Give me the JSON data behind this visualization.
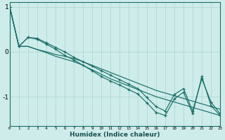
{
  "xlabel": "Humidex (Indice chaleur)",
  "bg_color": "#ceecea",
  "grid_color": "#b0d8d4",
  "line_color": "#1a7068",
  "xlim": [
    0,
    23
  ],
  "ylim": [
    -1.65,
    1.1
  ],
  "yticks": [
    -1,
    0,
    1
  ],
  "xticks": [
    0,
    1,
    2,
    3,
    4,
    5,
    6,
    7,
    8,
    9,
    10,
    11,
    12,
    13,
    14,
    15,
    16,
    17,
    18,
    19,
    20,
    21,
    22,
    23
  ],
  "series_smooth": [
    [
      1.0,
      0.12,
      0.12,
      0.05,
      0.0,
      -0.06,
      -0.1,
      -0.15,
      -0.22,
      -0.3,
      -0.38,
      -0.46,
      -0.54,
      -0.62,
      -0.7,
      -0.78,
      -0.86,
      -0.92,
      -0.98,
      -1.04,
      -1.1,
      -1.16,
      -1.22,
      -1.28
    ],
    [
      1.0,
      0.12,
      0.12,
      0.05,
      -0.02,
      -0.1,
      -0.16,
      -0.22,
      -0.3,
      -0.4,
      -0.5,
      -0.6,
      -0.68,
      -0.76,
      -0.84,
      -0.92,
      -1.0,
      -1.06,
      -1.12,
      -1.18,
      -1.24,
      -1.3,
      -1.36,
      -1.42
    ]
  ],
  "series_jagged": [
    [
      1.0,
      0.12,
      0.32,
      0.3,
      0.2,
      0.1,
      0.0,
      -0.12,
      -0.22,
      -0.32,
      -0.42,
      -0.52,
      -0.62,
      -0.72,
      -0.82,
      -1.02,
      -1.22,
      -1.32,
      -0.95,
      -0.82,
      -1.32,
      -0.6,
      -1.12,
      -1.38
    ],
    [
      1.0,
      0.12,
      0.32,
      0.28,
      0.17,
      0.06,
      -0.08,
      -0.18,
      -0.3,
      -0.42,
      -0.55,
      -0.65,
      -0.74,
      -0.84,
      -0.94,
      -1.14,
      -1.35,
      -1.42,
      -1.05,
      -0.9,
      -1.38,
      -0.55,
      -1.2,
      -1.42
    ]
  ]
}
